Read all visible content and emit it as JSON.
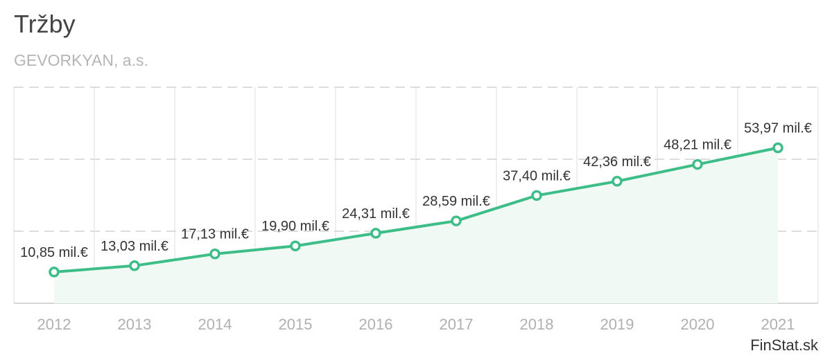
{
  "chart_data": {
    "type": "line",
    "title": "Tržby",
    "subtitle": "GEVORKYAN, a.s.",
    "categories": [
      "2012",
      "2013",
      "2014",
      "2015",
      "2016",
      "2017",
      "2018",
      "2019",
      "2020",
      "2021"
    ],
    "values": [
      10.85,
      13.03,
      17.13,
      19.9,
      24.31,
      28.59,
      37.4,
      42.36,
      48.21,
      53.97
    ],
    "data_labels": [
      "10,85 mil.€",
      "13,03 mil.€",
      "17,13 mil.€",
      "19,90 mil.€",
      "24,31 mil.€",
      "28,59 mil.€",
      "37,40 mil.€",
      "42,36 mil.€",
      "48,21 mil.€",
      "53,97 mil.€"
    ],
    "ylim": [
      0,
      75
    ],
    "yticks": [
      0,
      25,
      50,
      75
    ],
    "grid": true,
    "area_fill": true,
    "colors": {
      "line": "#3dbd87",
      "area": "#f1f9f5",
      "grid": "#dddddd"
    }
  },
  "brand": "FinStat.sk"
}
